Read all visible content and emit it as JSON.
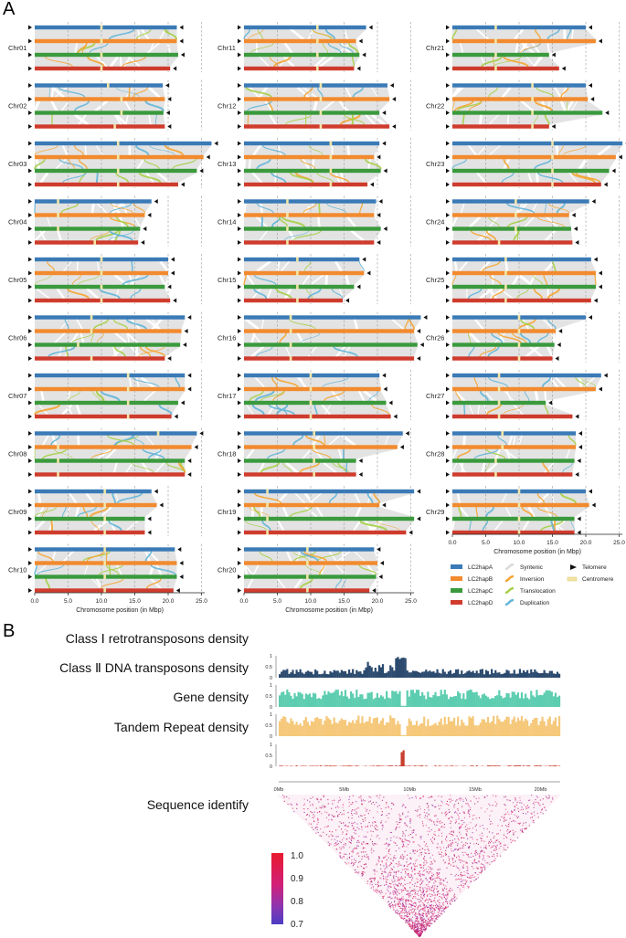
{
  "panelA": {
    "label": "A",
    "chromosomes": [
      {
        "name": "Chr01",
        "lens": [
          21.3,
          21.3,
          21.5,
          20.3
        ],
        "cen": [
          10,
          10,
          10,
          10
        ]
      },
      {
        "name": "Chr02",
        "lens": [
          19.2,
          19.5,
          19.3,
          19.5
        ],
        "cen": [
          11,
          13,
          13,
          12
        ]
      },
      {
        "name": "Chr03",
        "lens": [
          26.5,
          25.3,
          24.3,
          21.5
        ],
        "cen": [
          12.5,
          12.5,
          12.5,
          12.5
        ]
      },
      {
        "name": "Chr04",
        "lens": [
          17.5,
          16.5,
          15.8,
          15.5
        ],
        "cen": [
          3.5,
          3.5,
          3.5,
          9
        ]
      },
      {
        "name": "Chr05",
        "lens": [
          20,
          20,
          19.5,
          20.3
        ],
        "cen": [
          10,
          10,
          10,
          10
        ]
      },
      {
        "name": "Chr06",
        "lens": [
          22.5,
          22,
          21.8,
          19.5
        ],
        "cen": [
          8.5,
          8.5,
          6.5,
          8.5
        ]
      },
      {
        "name": "Chr07",
        "lens": [
          22.5,
          22.5,
          21.5,
          20.5
        ],
        "cen": [
          14,
          14,
          14,
          14
        ]
      },
      {
        "name": "Chr08",
        "lens": [
          24.3,
          23.5,
          22.5,
          22.5
        ],
        "cen": [
          18.5,
          3.5,
          3.5,
          3.5
        ]
      },
      {
        "name": "Chr09",
        "lens": [
          17.5,
          18.3,
          16.5,
          16.5
        ],
        "cen": [
          10.5,
          10.5,
          10.5,
          10.5
        ]
      },
      {
        "name": "Chr10",
        "lens": [
          21,
          21.3,
          21.3,
          20.8
        ],
        "cen": [
          10.5,
          10.5,
          10.5,
          10.5
        ]
      },
      {
        "name": "Chr11",
        "lens": [
          18.3,
          16.8,
          17.3,
          16.5
        ],
        "cen": [
          11,
          11,
          11,
          11
        ]
      },
      {
        "name": "Chr12",
        "lens": [
          21.5,
          21.8,
          20.3,
          21.8
        ],
        "cen": [
          11.5,
          11.5,
          11.5,
          11.5
        ]
      },
      {
        "name": "Chr13",
        "lens": [
          20.3,
          19.5,
          20.5,
          18.5
        ],
        "cen": [
          13,
          13,
          13,
          13
        ]
      },
      {
        "name": "Chr14",
        "lens": [
          19.8,
          19.5,
          20.5,
          19.5
        ],
        "cen": [
          6.5,
          6.5,
          6.5,
          6.5
        ]
      },
      {
        "name": "Chr15",
        "lens": [
          17.3,
          18,
          16.5,
          14.8
        ],
        "cen": [
          8,
          8,
          8,
          8
        ]
      },
      {
        "name": "Chr16",
        "lens": [
          26.5,
          25.5,
          26,
          25.5
        ],
        "cen": [
          7,
          7,
          7,
          7
        ]
      },
      {
        "name": "Chr17",
        "lens": [
          20.3,
          20.5,
          21.3,
          22
        ],
        "cen": [
          10,
          10,
          10,
          10
        ]
      },
      {
        "name": "Chr18",
        "lens": [
          23.8,
          23,
          16.8,
          16.8
        ],
        "cen": [
          10.5,
          10.5,
          10.5,
          10.5
        ]
      },
      {
        "name": "Chr19",
        "lens": [
          25.5,
          20.3,
          25.5,
          24.3
        ],
        "cen": [
          3.5,
          3.5,
          3.5,
          3.5
        ]
      },
      {
        "name": "Chr20",
        "lens": [
          19.5,
          20,
          19.8,
          18.8
        ],
        "cen": [
          9.5,
          9.5,
          9.5,
          9.5
        ]
      },
      {
        "name": "Chr21",
        "lens": [
          20,
          21.5,
          14.5,
          16
        ],
        "cen": [
          6.5,
          6.5,
          6.5,
          6.5
        ]
      },
      {
        "name": "Chr22",
        "lens": [
          20,
          20.3,
          22.5,
          14.5
        ],
        "cen": [
          12,
          12,
          12,
          12
        ]
      },
      {
        "name": "Chr23",
        "lens": [
          25.5,
          24.5,
          23.5,
          22.3
        ],
        "cen": [
          15,
          15,
          15,
          15
        ]
      },
      {
        "name": "Chr24",
        "lens": [
          20.5,
          17.5,
          17.8,
          18
        ],
        "cen": [
          9.5,
          9.5,
          9.5,
          7
        ]
      },
      {
        "name": "Chr25",
        "lens": [
          20.8,
          21.5,
          21.5,
          20.8
        ],
        "cen": [
          8,
          8,
          8,
          8
        ]
      },
      {
        "name": "Chr26",
        "lens": [
          20,
          15.5,
          15.3,
          15
        ],
        "cen": [
          10,
          10,
          10,
          10
        ]
      },
      {
        "name": "Chr27",
        "lens": [
          22.3,
          21.5,
          14,
          18
        ],
        "cen": [
          7,
          7,
          7,
          7
        ]
      },
      {
        "name": "Chr28",
        "lens": [
          18.5,
          18.5,
          18.3,
          18
        ],
        "cen": [
          7.5,
          7.5,
          6.5,
          6.5
        ]
      },
      {
        "name": "Chr29",
        "lens": [
          20,
          20.5,
          18.3,
          18.3
        ],
        "cen": [
          10,
          10,
          10,
          10
        ]
      }
    ],
    "axis": {
      "ticks": [
        "0.0",
        "5.0",
        "10.0",
        "15.0",
        "20.0",
        "25.0"
      ],
      "label": "Chromosome position (in Mbp)"
    },
    "legend": {
      "haplotypes": [
        {
          "label": "LC2hapA",
          "color": "#3a7ab6"
        },
        {
          "label": "LC2hapB",
          "color": "#f28a2e"
        },
        {
          "label": "LC2hapC",
          "color": "#3a9a3c"
        },
        {
          "label": "LC2hapD",
          "color": "#cf3b2c"
        }
      ],
      "links": [
        {
          "label": "Syntenic",
          "color": "#d9d9d9"
        },
        {
          "label": "Inversion",
          "color": "#f4a532"
        },
        {
          "label": "Translocation",
          "color": "#a6cf47"
        },
        {
          "label": "Duplication",
          "color": "#62b5d8"
        }
      ],
      "markers": [
        {
          "label": "Telomere"
        },
        {
          "label": "Centromere"
        }
      ]
    }
  },
  "panelB": {
    "label": "B",
    "tracks": [
      {
        "title": "Class Ⅰ retrotransposons density",
        "color": "#2b4a6e",
        "ticks": [
          "1",
          "0.5",
          "0"
        ]
      },
      {
        "title": "Class Ⅱ DNA transposons density",
        "color": "#5ccdb0",
        "ticks": [
          "1",
          "0.5",
          "0"
        ]
      },
      {
        "title": "Gene density",
        "color": "#f5c87a",
        "ticks": [
          "1",
          "0.5",
          "0"
        ]
      },
      {
        "title": "Tandem Repeat density",
        "color": "#c73e2c",
        "ticks": [
          "1",
          "0.5",
          "0"
        ]
      }
    ],
    "xticks": [
      "0Mb",
      "5Mb",
      "10Mb",
      "15Mb",
      "20Mb"
    ],
    "identity_title": "Sequence identify",
    "colorbar": {
      "ticks": [
        "1.0",
        "0.9",
        "0.8",
        "0.7"
      ]
    }
  }
}
